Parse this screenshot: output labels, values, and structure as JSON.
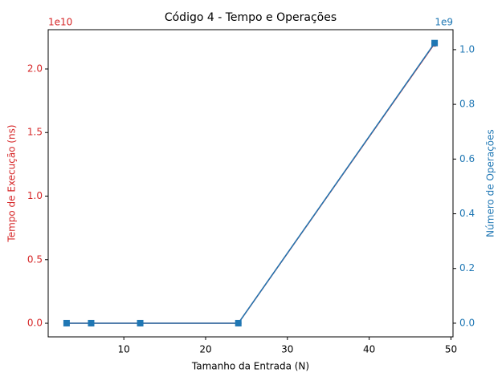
{
  "chart_data": {
    "type": "line",
    "title": "Código 4 - Tempo e Operações",
    "x_label": "Tamanho da Entrada (N)",
    "y_label": "Tempo de Execução (ns)",
    "y2_label": "Número de Operações",
    "y_offset_text": "1e10",
    "y2_offset_text": "1e9",
    "x": [
      3,
      6,
      12,
      24,
      48
    ],
    "xlim": [
      0.75,
      50.25
    ],
    "xticks": [
      10,
      20,
      30,
      40,
      50
    ],
    "ylim": [
      -1070000000,
      23090000000
    ],
    "yticks": [
      {
        "value": 0,
        "label": "0.0"
      },
      {
        "value": 5000000000,
        "label": "0.5"
      },
      {
        "value": 10000000000,
        "label": "1.0"
      },
      {
        "value": 15000000000,
        "label": "1.5"
      },
      {
        "value": 20000000000,
        "label": "2.0"
      }
    ],
    "y2lim": [
      -50000000,
      1073000000
    ],
    "y2ticks": [
      {
        "value": 0,
        "label": "0.0"
      },
      {
        "value": 200000000,
        "label": "0.2"
      },
      {
        "value": 400000000,
        "label": "0.4"
      },
      {
        "value": 600000000,
        "label": "0.6"
      },
      {
        "value": 800000000,
        "label": "0.8"
      },
      {
        "value": 1000000000,
        "label": "1.0"
      }
    ],
    "y_color": "#d62728",
    "y2_color": "#1f77b4",
    "series": [
      {
        "color": "#d62728",
        "marker": "circle",
        "axis": "y",
        "values": [
          0,
          0,
          0,
          0,
          22000000000
        ]
      },
      {
        "color": "#1f77b4",
        "marker": "square",
        "axis": "y2",
        "values": [
          0,
          0,
          0,
          0,
          1024000000
        ]
      }
    ]
  }
}
